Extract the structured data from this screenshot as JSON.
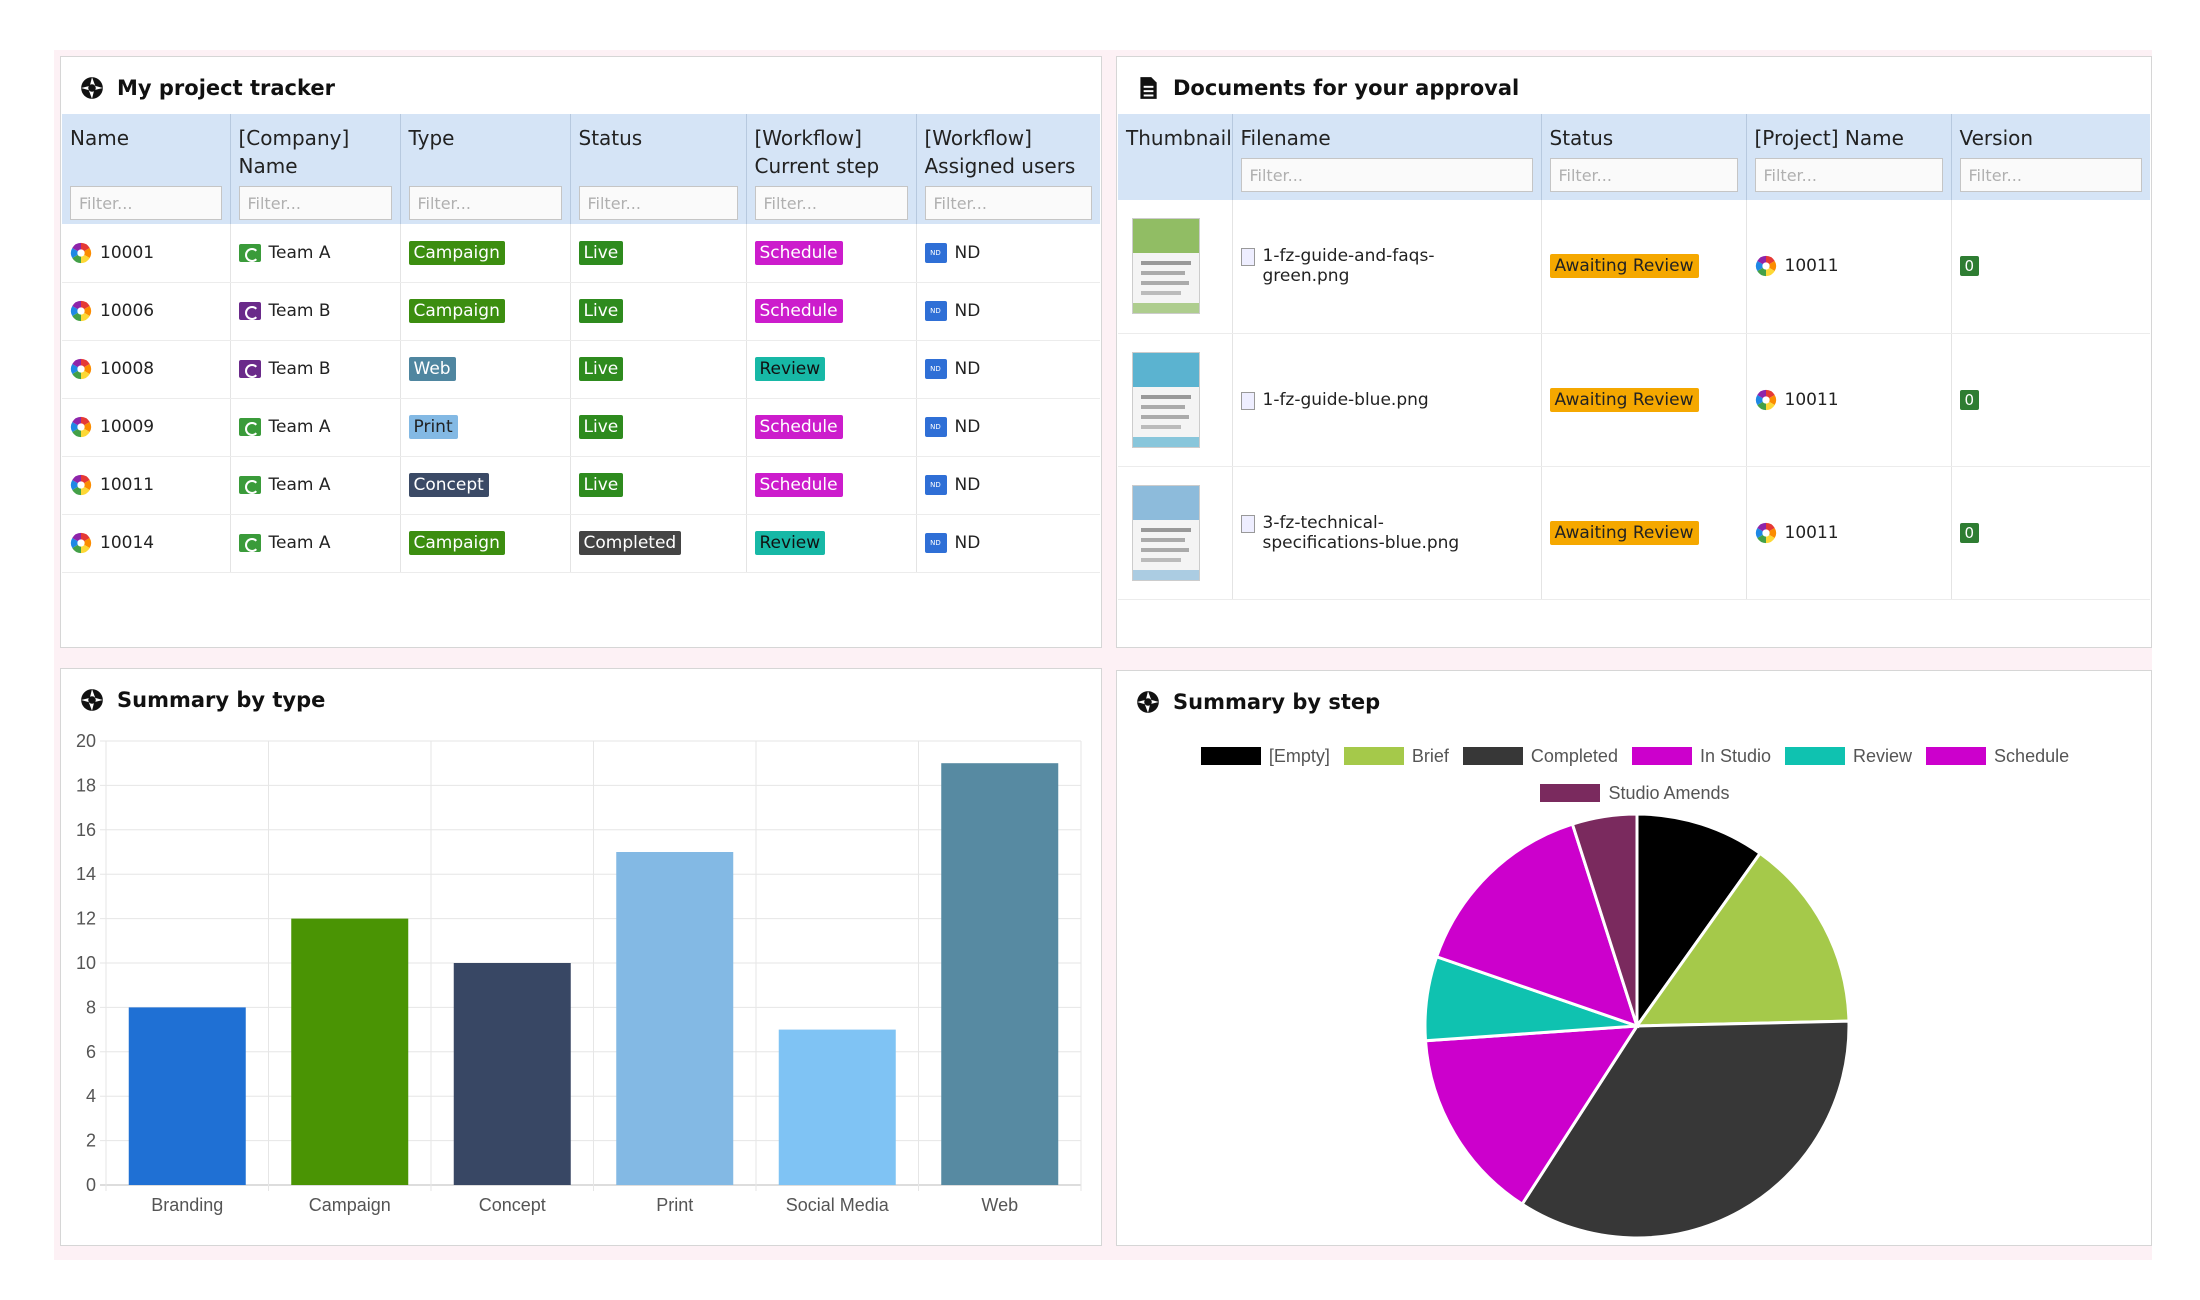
{
  "tracker": {
    "title": "My project tracker",
    "columns": [
      {
        "label": "Name",
        "filter_placeholder": "Filter..."
      },
      {
        "label": "[Company] Name",
        "filter_placeholder": "Filter..."
      },
      {
        "label": "Type",
        "filter_placeholder": "Filter..."
      },
      {
        "label": "Status",
        "filter_placeholder": "Filter..."
      },
      {
        "label": "[Workflow] Current step",
        "filter_placeholder": "Filter..."
      },
      {
        "label": "[Workflow] Assigned users",
        "filter_placeholder": "Filter..."
      }
    ],
    "rows": [
      {
        "name": "10001",
        "company": "Team A",
        "company_color": "#3a9b3a",
        "type": "Campaign",
        "type_color": "#3c8e10",
        "status": "Live",
        "status_color": "#2e8b1e",
        "step": "Schedule",
        "step_color": "#cc1ccc",
        "user_initials": "ND",
        "user": "ND"
      },
      {
        "name": "10006",
        "company": "Team B",
        "company_color": "#6a2a8a",
        "type": "Campaign",
        "type_color": "#3c8e10",
        "status": "Live",
        "status_color": "#2e8b1e",
        "step": "Schedule",
        "step_color": "#cc1ccc",
        "user_initials": "ND",
        "user": "ND"
      },
      {
        "name": "10008",
        "company": "Team B",
        "company_color": "#6a2a8a",
        "type": "Web",
        "type_color": "#4f86a0",
        "status": "Live",
        "status_color": "#2e8b1e",
        "step": "Review",
        "step_color": "#17b8a6",
        "user_initials": "ND",
        "user": "ND"
      },
      {
        "name": "10009",
        "company": "Team A",
        "company_color": "#3a9b3a",
        "type": "Print",
        "type_color": "#83b9e4",
        "status": "Live",
        "status_color": "#2e8b1e",
        "step": "Schedule",
        "step_color": "#cc1ccc",
        "user_initials": "ND",
        "user": "ND"
      },
      {
        "name": "10011",
        "company": "Team A",
        "company_color": "#3a9b3a",
        "type": "Concept",
        "type_color": "#3b4a66",
        "status": "Live",
        "status_color": "#2e8b1e",
        "step": "Schedule",
        "step_color": "#cc1ccc",
        "user_initials": "ND",
        "user": "ND"
      },
      {
        "name": "10014",
        "company": "Team A",
        "company_color": "#3a9b3a",
        "type": "Campaign",
        "type_color": "#3c8e10",
        "status": "Completed",
        "status_color": "#444444",
        "step": "Review",
        "step_color": "#17b8a6",
        "user_initials": "ND",
        "user": "ND"
      }
    ]
  },
  "approval": {
    "title": "Documents for your approval",
    "columns": [
      {
        "label": "Thumbnail",
        "filter_placeholder": ""
      },
      {
        "label": "Filename",
        "filter_placeholder": "Filter..."
      },
      {
        "label": "Status",
        "filter_placeholder": "Filter..."
      },
      {
        "label": "[Project] Name",
        "filter_placeholder": "Filter..."
      },
      {
        "label": "Version",
        "filter_placeholder": "Filter..."
      }
    ],
    "rows": [
      {
        "filename": "1-fz-guide-and-faqs-green.png",
        "status": "Awaiting Review",
        "project": "10011",
        "version": "0",
        "thumb_color": "#7fb34a"
      },
      {
        "filename": "1-fz-guide-blue.png",
        "status": "Awaiting Review",
        "project": "10011",
        "version": "0",
        "thumb_color": "#3fa7c9"
      },
      {
        "filename": "3-fz-technical-specifications-blue.png",
        "status": "Awaiting Review",
        "project": "10011",
        "version": "0",
        "thumb_color": "#7ab0d6"
      }
    ],
    "status_color": "#f5a800"
  },
  "summary_type": {
    "title": "Summary by type",
    "chart_data": {
      "type": "bar",
      "categories": [
        "Branding",
        "Campaign",
        "Concept",
        "Print",
        "Social Media",
        "Web"
      ],
      "values": [
        8,
        12,
        10,
        15,
        7,
        19
      ],
      "colors": [
        "#1f70d4",
        "#4a9404",
        "#384764",
        "#83b9e4",
        "#7fc3f4",
        "#578aa2"
      ],
      "yticks": [
        "0",
        "2",
        "4",
        "6",
        "8",
        "10",
        "12",
        "14",
        "16",
        "18",
        "20"
      ],
      "ylim": [
        0,
        20
      ],
      "grid": true
    }
  },
  "summary_step": {
    "title": "Summary by step",
    "chart_data": {
      "type": "pie",
      "labels": [
        "[Empty]",
        "Brief",
        "Completed",
        "In Studio",
        "Review",
        "Schedule",
        "Studio Amends"
      ],
      "values": [
        2,
        3,
        7,
        3,
        1.3,
        3,
        1
      ],
      "colors": [
        "#000000",
        "#a5c94a",
        "#373737",
        "#cc00cc",
        "#0fc2b0",
        "#cc00cc",
        "#7a2a5e"
      ],
      "legend_position": "top"
    }
  }
}
